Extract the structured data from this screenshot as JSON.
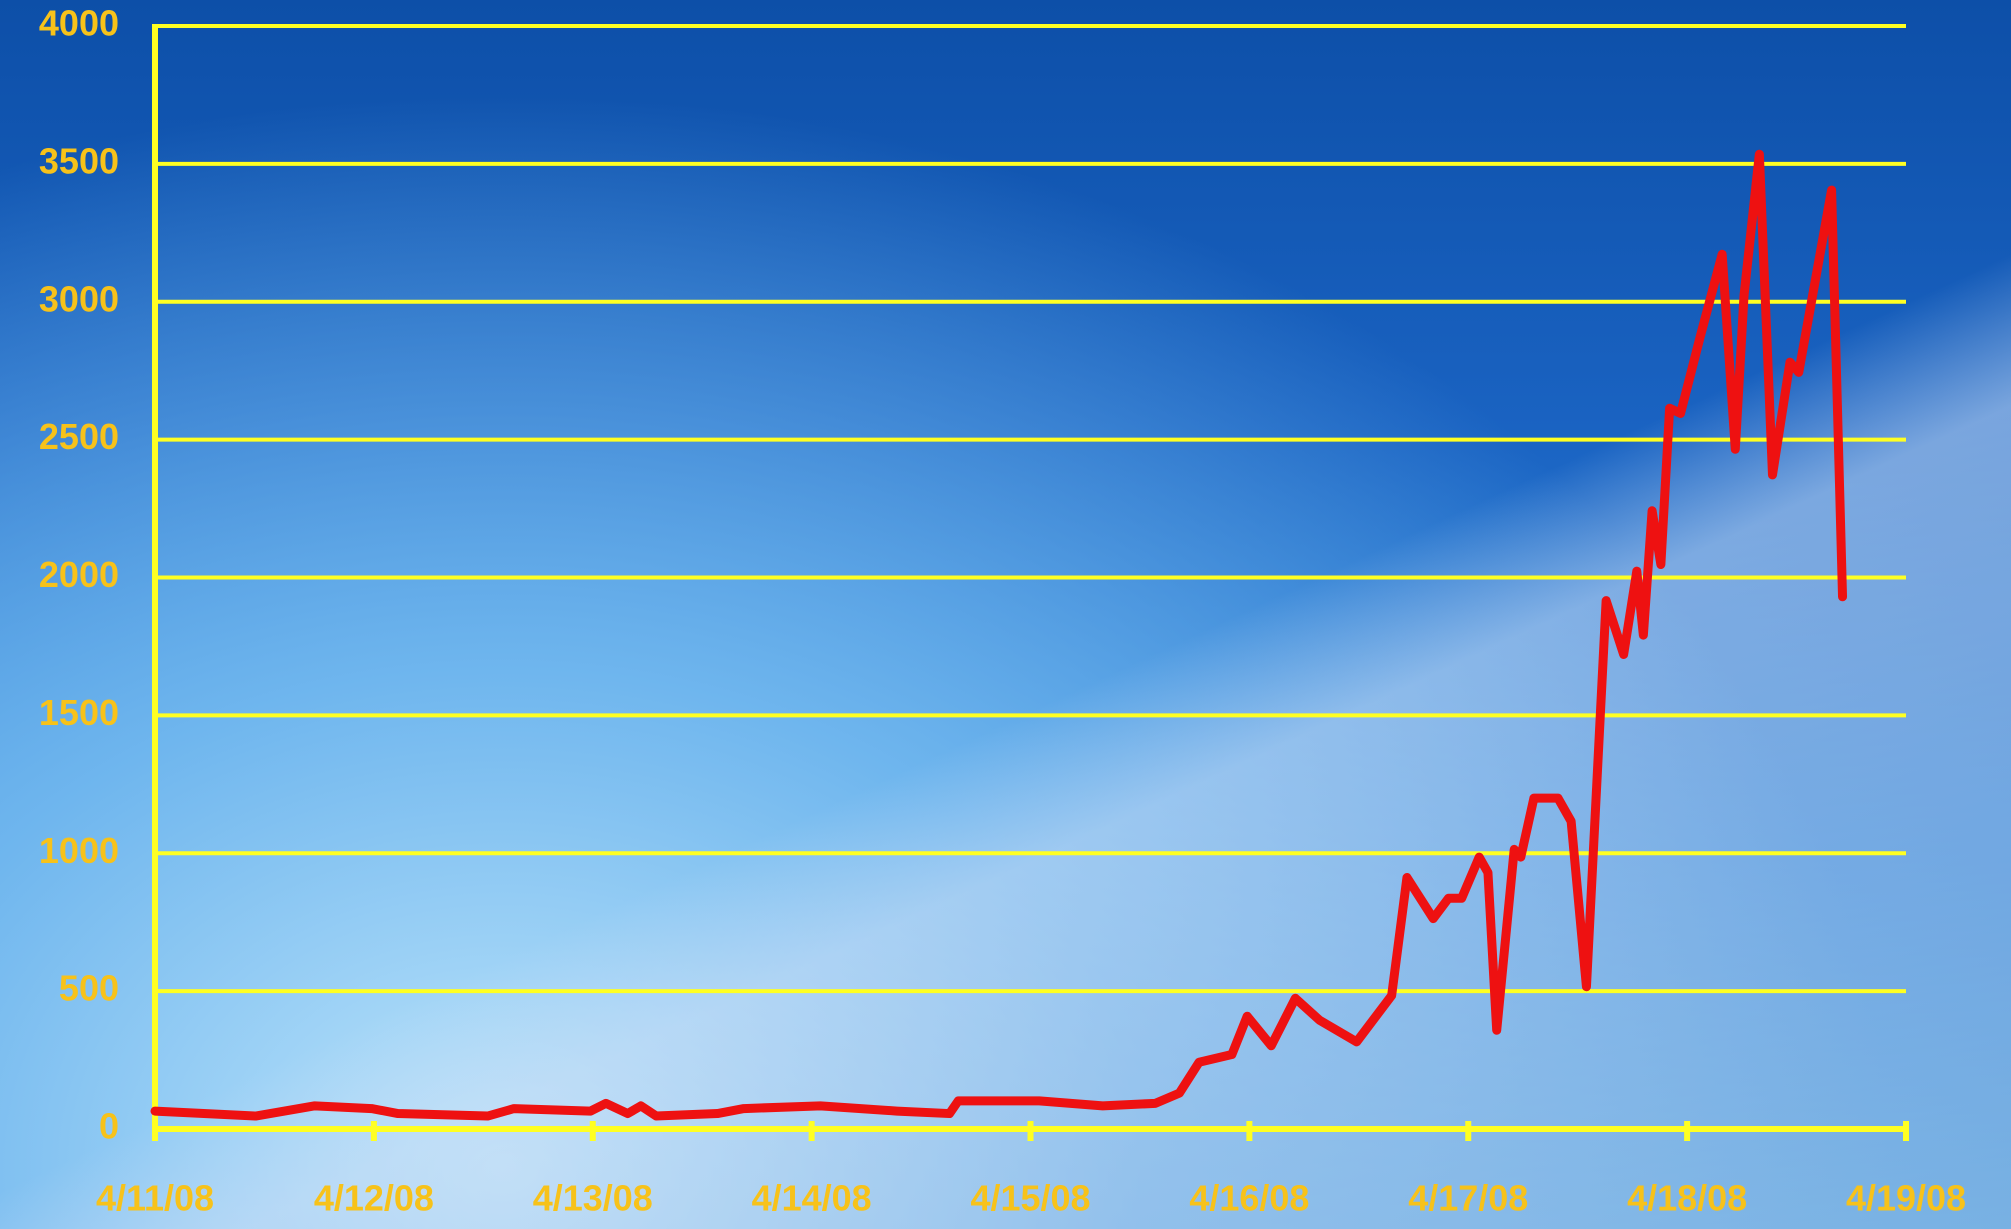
{
  "chart_data": {
    "type": "line",
    "x": [
      0,
      0.46,
      0.73,
      0.99,
      1.11,
      1.52,
      1.64,
      1.99,
      2.06,
      2.16,
      2.22,
      2.29,
      2.57,
      2.69,
      3.04,
      3.39,
      3.63,
      3.67,
      3.86,
      4.04,
      4.33,
      4.57,
      4.68,
      4.77,
      4.92,
      4.99,
      5.1,
      5.21,
      5.32,
      5.49,
      5.65,
      5.72,
      5.84,
      5.91,
      5.97,
      6.05,
      6.09,
      6.13,
      6.21,
      6.24,
      6.3,
      6.41,
      6.47,
      6.54,
      6.63,
      6.71,
      6.77,
      6.8,
      6.84,
      6.88,
      6.92,
      6.97,
      7.06,
      7.16,
      7.22,
      7.26,
      7.33,
      7.39,
      7.47,
      7.51,
      7.66,
      7.71
    ],
    "series": [
      {
        "color": "#ee1111",
        "values": [
          65,
          47,
          84,
          74,
          56,
          47,
          74,
          65,
          93,
          56,
          84,
          47,
          56,
          74,
          84,
          65,
          56,
          102,
          102,
          102,
          84,
          93,
          130,
          242,
          270,
          409,
          302,
          474,
          395,
          316,
          484,
          912,
          763,
          837,
          837,
          986,
          930,
          358,
          1014,
          986,
          1200,
          1200,
          1116,
          516,
          1916,
          1721,
          2023,
          1791,
          2242,
          2047,
          2614,
          2595,
          2874,
          3172,
          2465,
          3023,
          3535,
          2372,
          2781,
          2744,
          3405,
          1930
        ]
      }
    ],
    "xlim": [
      0,
      8
    ],
    "xticks": [
      {
        "value": 0,
        "label": "4/11/08"
      },
      {
        "value": 1,
        "label": "4/12/08"
      },
      {
        "value": 2,
        "label": "4/13/08"
      },
      {
        "value": 3,
        "label": "4/14/08"
      },
      {
        "value": 4,
        "label": "4/15/08"
      },
      {
        "value": 5,
        "label": "4/16/08"
      },
      {
        "value": 6,
        "label": "4/17/08"
      },
      {
        "value": 7,
        "label": "4/18/08"
      },
      {
        "value": 8,
        "label": "4/19/08"
      }
    ],
    "ylim": [
      0,
      4000
    ],
    "yticks": [
      0,
      500,
      1000,
      1500,
      2000,
      2500,
      3000,
      3500,
      4000
    ],
    "grid": true,
    "grid_color": "#ffff22",
    "axis_color": "#ffff22"
  }
}
